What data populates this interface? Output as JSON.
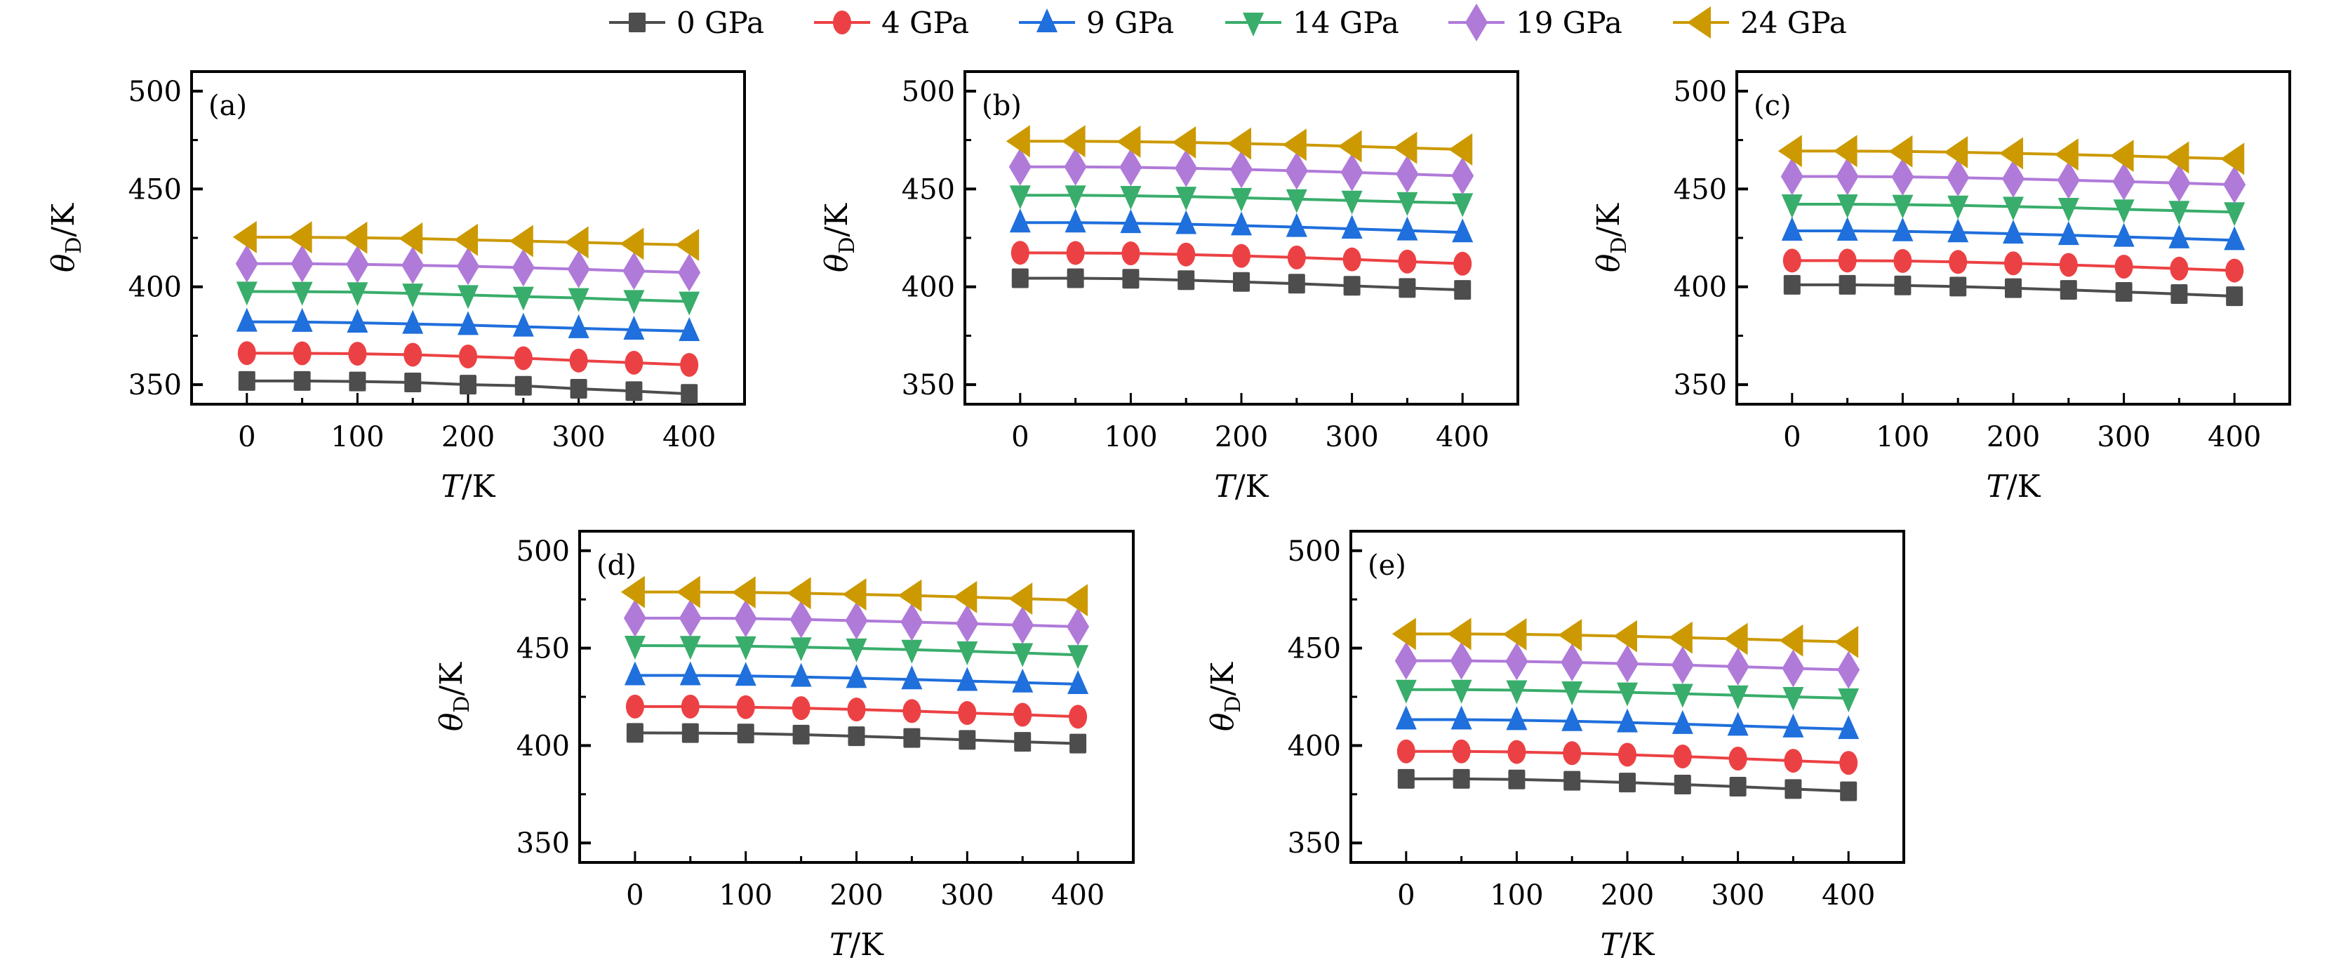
{
  "chart_data": {
    "type": "line",
    "legend": {
      "placement": "top-center",
      "entries": [
        {
          "label": "0 GPa",
          "color": "#4d4d4d",
          "marker": "square"
        },
        {
          "label": "4 GPa",
          "color": "#ec4144",
          "marker": "circle"
        },
        {
          "label": "9 GPa",
          "color": "#1f6fdc",
          "marker": "triangle-up"
        },
        {
          "label": "14 GPa",
          "color": "#39ad6b",
          "marker": "triangle-down"
        },
        {
          "label": "19 GPa",
          "color": "#b07ad9",
          "marker": "diamond"
        },
        {
          "label": "24 GPa",
          "color": "#cc9900",
          "marker": "triangle-left"
        }
      ]
    },
    "shared": {
      "x": [
        0,
        50,
        100,
        150,
        200,
        250,
        300,
        350,
        400
      ],
      "xlabel": "T/K",
      "ylabel": "θD/K",
      "xlim": [
        -50,
        450
      ],
      "ylim": [
        340,
        510
      ],
      "xticks": [
        0,
        100,
        200,
        300,
        400
      ],
      "xminor": [
        50,
        150,
        250,
        350
      ],
      "yticks": [
        350,
        400,
        450,
        500
      ],
      "yminor": [
        375,
        425,
        475
      ],
      "grid": false
    },
    "panels": [
      {
        "label": "(a)",
        "series": [
          {
            "name": "0 GPa",
            "values": [
              351.9,
              351.9,
              351.6,
              351.1,
              350.0,
              349.4,
              347.9,
              346.7,
              345.3
            ]
          },
          {
            "name": "4 GPa",
            "values": [
              366.1,
              366.0,
              365.8,
              365.3,
              364.4,
              363.5,
              362.3,
              361.2,
              360.1
            ]
          },
          {
            "name": "9 GPa",
            "values": [
              382.1,
              382.0,
              381.6,
              381.0,
              380.4,
              379.6,
              378.8,
              378.0,
              377.3
            ]
          },
          {
            "name": "14 GPa",
            "values": [
              397.6,
              397.5,
              397.3,
              396.6,
              395.8,
              395.0,
              394.3,
              393.3,
              392.5
            ]
          },
          {
            "name": "19 GPa",
            "values": [
              411.8,
              411.8,
              411.5,
              411.0,
              410.5,
              409.8,
              409.0,
              408.1,
              407.3
            ]
          },
          {
            "name": "24 GPa",
            "values": [
              425.4,
              425.3,
              425.1,
              424.7,
              424.0,
              423.4,
              422.7,
              422.0,
              421.4
            ]
          }
        ]
      },
      {
        "label": "(b)",
        "series": [
          {
            "name": "0 GPa",
            "values": [
              404.4,
              404.4,
              404.1,
              403.4,
              402.5,
              401.6,
              400.5,
              399.4,
              398.4
            ]
          },
          {
            "name": "4 GPa",
            "values": [
              417.4,
              417.3,
              417.1,
              416.5,
              415.8,
              415.0,
              414.0,
              412.9,
              411.8
            ]
          },
          {
            "name": "9 GPa",
            "values": [
              432.8,
              432.8,
              432.5,
              432.0,
              431.3,
              430.5,
              429.6,
              428.7,
              427.8
            ]
          },
          {
            "name": "14 GPa",
            "values": [
              446.8,
              446.8,
              446.5,
              446.1,
              445.5,
              444.8,
              444.1,
              443.4,
              442.8
            ]
          },
          {
            "name": "19 GPa",
            "values": [
              461.3,
              461.3,
              461.1,
              460.6,
              460.0,
              459.3,
              458.5,
              457.6,
              456.7
            ]
          },
          {
            "name": "24 GPa",
            "values": [
              474.4,
              474.4,
              474.2,
              473.8,
              473.2,
              472.6,
              471.8,
              471.0,
              470.2
            ]
          }
        ]
      },
      {
        "label": "(c)",
        "series": [
          {
            "name": "0 GPa",
            "values": [
              401.0,
              401.0,
              400.7,
              400.1,
              399.3,
              398.4,
              397.4,
              396.3,
              395.2
            ]
          },
          {
            "name": "4 GPa",
            "values": [
              413.4,
              413.4,
              413.2,
              412.7,
              412.0,
              411.2,
              410.3,
              409.3,
              408.3
            ]
          },
          {
            "name": "9 GPa",
            "values": [
              428.6,
              428.6,
              428.3,
              427.8,
              427.1,
              426.4,
              425.5,
              424.7,
              423.8
            ]
          },
          {
            "name": "14 GPa",
            "values": [
              442.2,
              442.2,
              442.0,
              441.6,
              441.0,
              440.4,
              439.6,
              438.9,
              438.2
            ]
          },
          {
            "name": "19 GPa",
            "values": [
              456.4,
              456.4,
              456.2,
              455.8,
              455.2,
              454.5,
              453.8,
              453.0,
              452.2
            ]
          },
          {
            "name": "24 GPa",
            "values": [
              469.4,
              469.4,
              469.2,
              468.8,
              468.2,
              467.6,
              466.9,
              466.1,
              465.4
            ]
          }
        ]
      },
      {
        "label": "(d)",
        "series": [
          {
            "name": "0 GPa",
            "values": [
              406.5,
              406.4,
              406.2,
              405.6,
              404.8,
              403.9,
              402.9,
              401.9,
              401.0
            ]
          },
          {
            "name": "4 GPa",
            "values": [
              420.0,
              420.0,
              419.7,
              419.2,
              418.5,
              417.7,
              416.7,
              415.8,
              414.8
            ]
          },
          {
            "name": "9 GPa",
            "values": [
              436.0,
              436.0,
              435.7,
              435.2,
              434.6,
              433.9,
              433.1,
              432.3,
              431.5
            ]
          },
          {
            "name": "14 GPa",
            "values": [
              451.3,
              451.2,
              451.0,
              450.5,
              449.9,
              449.2,
              448.4,
              447.5,
              446.5
            ]
          },
          {
            "name": "19 GPa",
            "values": [
              465.4,
              465.4,
              465.2,
              464.7,
              464.1,
              463.4,
              462.6,
              461.8,
              461.0
            ]
          },
          {
            "name": "24 GPa",
            "values": [
              478.8,
              478.8,
              478.6,
              478.2,
              477.6,
              477.0,
              476.2,
              475.4,
              474.6
            ]
          }
        ]
      },
      {
        "label": "(e)",
        "series": [
          {
            "name": "0 GPa",
            "values": [
              382.9,
              382.9,
              382.6,
              381.9,
              381.0,
              380.0,
              378.9,
              377.7,
              376.5
            ]
          },
          {
            "name": "4 GPa",
            "values": [
              397.0,
              397.0,
              396.7,
              396.1,
              395.3,
              394.4,
              393.3,
              392.2,
              391.1
            ]
          },
          {
            "name": "9 GPa",
            "values": [
              413.3,
              413.3,
              413.0,
              412.5,
              411.8,
              411.0,
              410.1,
              409.2,
              408.4
            ]
          },
          {
            "name": "14 GPa",
            "values": [
              428.7,
              428.7,
              428.4,
              427.9,
              427.3,
              426.6,
              425.8,
              425.0,
              424.3
            ]
          },
          {
            "name": "19 GPa",
            "values": [
              443.5,
              443.5,
              443.2,
              442.7,
              442.0,
              441.3,
              440.5,
              439.6,
              438.8
            ]
          },
          {
            "name": "24 GPa",
            "values": [
              457.3,
              457.3,
              457.1,
              456.7,
              456.1,
              455.4,
              454.7,
              453.9,
              453.2
            ]
          }
        ]
      }
    ]
  }
}
